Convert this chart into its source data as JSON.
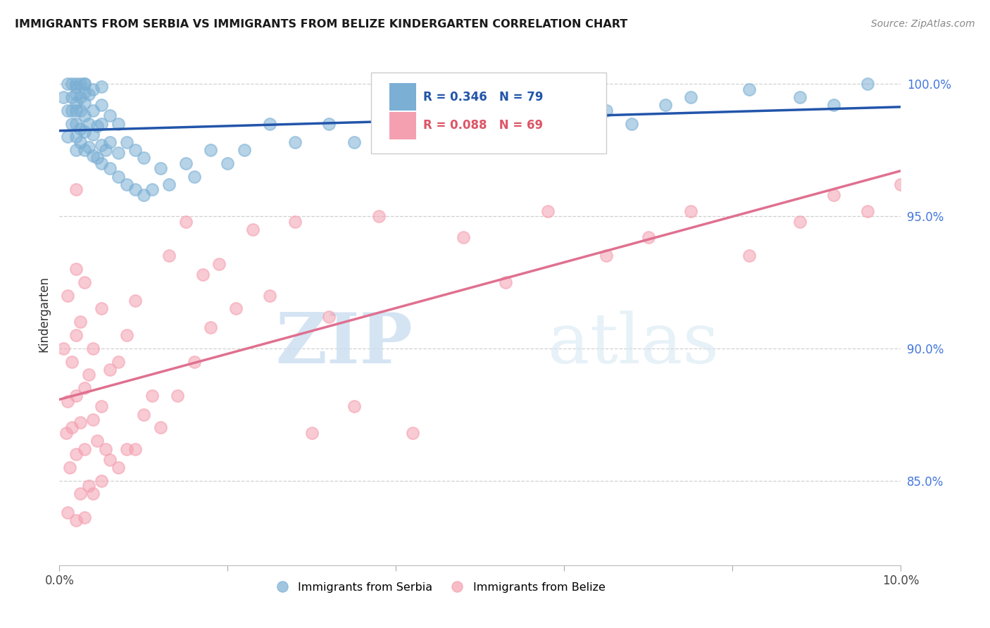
{
  "title": "IMMIGRANTS FROM SERBIA VS IMMIGRANTS FROM BELIZE KINDERGARTEN CORRELATION CHART",
  "source": "Source: ZipAtlas.com",
  "ylabel": "Kindergarten",
  "serbia_color": "#7BAFD4",
  "belize_color": "#F4A0B0",
  "serbia_line_color": "#2255AA",
  "belize_line_color": "#E07090",
  "serbia_R": 0.346,
  "serbia_N": 79,
  "belize_R": 0.088,
  "belize_N": 69,
  "xlim": [
    0.0,
    0.1
  ],
  "ylim": [
    0.818,
    1.008
  ],
  "y_ticks": [
    0.85,
    0.9,
    0.95,
    1.0
  ],
  "y_tick_labels": [
    "85.0%",
    "90.0%",
    "95.0%",
    "100.0%"
  ],
  "x_ticks": [
    0.0,
    0.02,
    0.04,
    0.06,
    0.08,
    0.1
  ],
  "watermark_zip": "ZIP",
  "watermark_atlas": "atlas",
  "background_color": "#FFFFFF",
  "grid_color": "#CCCCCC",
  "serbia_scatter_x": [
    0.0005,
    0.001,
    0.001,
    0.001,
    0.0015,
    0.0015,
    0.0015,
    0.0015,
    0.002,
    0.002,
    0.002,
    0.002,
    0.002,
    0.002,
    0.002,
    0.002,
    0.0025,
    0.0025,
    0.0025,
    0.0025,
    0.0025,
    0.003,
    0.003,
    0.003,
    0.003,
    0.003,
    0.003,
    0.003,
    0.0035,
    0.0035,
    0.0035,
    0.004,
    0.004,
    0.004,
    0.004,
    0.0045,
    0.0045,
    0.005,
    0.005,
    0.005,
    0.005,
    0.005,
    0.0055,
    0.006,
    0.006,
    0.006,
    0.007,
    0.007,
    0.007,
    0.008,
    0.008,
    0.009,
    0.009,
    0.01,
    0.01,
    0.011,
    0.012,
    0.013,
    0.015,
    0.016,
    0.018,
    0.02,
    0.022,
    0.025,
    0.028,
    0.032,
    0.035,
    0.038,
    0.042,
    0.045,
    0.055,
    0.065,
    0.068,
    0.072,
    0.075,
    0.082,
    0.088,
    0.092,
    0.096
  ],
  "serbia_scatter_y": [
    0.995,
    0.98,
    0.99,
    1.0,
    0.985,
    0.99,
    0.995,
    1.0,
    0.975,
    0.98,
    0.985,
    0.99,
    0.993,
    0.996,
    0.999,
    1.0,
    0.978,
    0.983,
    0.99,
    0.995,
    1.0,
    0.975,
    0.982,
    0.988,
    0.993,
    0.997,
    1.0,
    1.0,
    0.976,
    0.985,
    0.996,
    0.973,
    0.981,
    0.99,
    0.998,
    0.972,
    0.984,
    0.97,
    0.977,
    0.985,
    0.992,
    0.999,
    0.975,
    0.968,
    0.978,
    0.988,
    0.965,
    0.974,
    0.985,
    0.962,
    0.978,
    0.96,
    0.975,
    0.958,
    0.972,
    0.96,
    0.968,
    0.962,
    0.97,
    0.965,
    0.975,
    0.97,
    0.975,
    0.985,
    0.978,
    0.985,
    0.978,
    0.98,
    0.99,
    0.988,
    0.992,
    0.99,
    0.985,
    0.992,
    0.995,
    0.998,
    0.995,
    0.992,
    1.0
  ],
  "belize_scatter_x": [
    0.0005,
    0.0008,
    0.001,
    0.001,
    0.001,
    0.0012,
    0.0015,
    0.0015,
    0.002,
    0.002,
    0.002,
    0.002,
    0.002,
    0.002,
    0.0025,
    0.0025,
    0.0025,
    0.003,
    0.003,
    0.003,
    0.003,
    0.0035,
    0.0035,
    0.004,
    0.004,
    0.004,
    0.0045,
    0.005,
    0.005,
    0.005,
    0.0055,
    0.006,
    0.006,
    0.007,
    0.007,
    0.008,
    0.008,
    0.009,
    0.009,
    0.01,
    0.011,
    0.012,
    0.013,
    0.014,
    0.015,
    0.016,
    0.017,
    0.018,
    0.019,
    0.021,
    0.023,
    0.025,
    0.028,
    0.03,
    0.032,
    0.035,
    0.038,
    0.042,
    0.048,
    0.053,
    0.058,
    0.065,
    0.07,
    0.075,
    0.082,
    0.088,
    0.092,
    0.096,
    0.1
  ],
  "belize_scatter_y": [
    0.9,
    0.868,
    0.838,
    0.88,
    0.92,
    0.855,
    0.87,
    0.895,
    0.835,
    0.86,
    0.882,
    0.905,
    0.93,
    0.96,
    0.845,
    0.872,
    0.91,
    0.836,
    0.862,
    0.885,
    0.925,
    0.848,
    0.89,
    0.845,
    0.873,
    0.9,
    0.865,
    0.85,
    0.878,
    0.915,
    0.862,
    0.858,
    0.892,
    0.855,
    0.895,
    0.862,
    0.905,
    0.862,
    0.918,
    0.875,
    0.882,
    0.87,
    0.935,
    0.882,
    0.948,
    0.895,
    0.928,
    0.908,
    0.932,
    0.915,
    0.945,
    0.92,
    0.948,
    0.868,
    0.912,
    0.878,
    0.95,
    0.868,
    0.942,
    0.925,
    0.952,
    0.935,
    0.942,
    0.952,
    0.935,
    0.948,
    0.958,
    0.952,
    0.962
  ]
}
